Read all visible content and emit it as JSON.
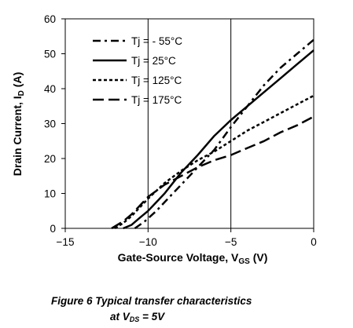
{
  "chart_data": {
    "type": "line",
    "xlabel": "Gate-Source Voltage, V",
    "xlabel_sub": "GS",
    "xlabel_unit": " (V)",
    "ylabel": "Drain Current, I",
    "ylabel_sub": "D",
    "ylabel_unit": " (A)",
    "xlim": [
      -15,
      0
    ],
    "ylim": [
      0,
      60
    ],
    "xticks": [
      -15,
      -10,
      -5,
      0
    ],
    "xtick_labels": [
      "−15",
      "−10",
      "−5",
      "0"
    ],
    "yticks": [
      0,
      10,
      20,
      30,
      40,
      50,
      60
    ],
    "ytick_labels": [
      "0",
      "10",
      "20",
      "30",
      "40",
      "50",
      "60"
    ],
    "grid": "vertical",
    "legend_position": "top-left",
    "series": [
      {
        "name": "Tj = - 55°C",
        "dash": "10,5,3,5",
        "x": [
          -10.8,
          -10.2,
          -9.5,
          -9.0,
          -8.5,
          -8.0,
          -7.5,
          -7.0,
          -6.0,
          -5.0,
          -4.0,
          -3.0,
          -2.0,
          -1.0,
          0.0
        ],
        "y": [
          0,
          2,
          5,
          7.5,
          10,
          12.5,
          15,
          17.5,
          22.5,
          29,
          35,
          41,
          46,
          50,
          54
        ]
      },
      {
        "name": "Tj = 25°C",
        "dash": "",
        "x": [
          -11.5,
          -11.0,
          -10.5,
          -10.0,
          -9.5,
          -9.0,
          -8.5,
          -8.0,
          -7.0,
          -6.0,
          -5.0,
          -4.0,
          -3.0,
          -2.0,
          -1.0,
          0.0
        ],
        "y": [
          0,
          1,
          3,
          5,
          7.5,
          10,
          13,
          16,
          21,
          26.5,
          31,
          35,
          39,
          43,
          47,
          51
        ]
      },
      {
        "name": "Tj = 125°C",
        "dash": "4,3",
        "x": [
          -12.0,
          -11.5,
          -11.0,
          -10.5,
          -10.0,
          -9.0,
          -8.0,
          -7.0,
          -6.0,
          -5.0,
          -4.0,
          -3.0,
          -2.0,
          -1.0,
          0.0
        ],
        "y": [
          0,
          1.5,
          3.5,
          6,
          8.5,
          13,
          16.5,
          19.5,
          22,
          25,
          28,
          30.5,
          33,
          35.5,
          38
        ]
      },
      {
        "name": "Tj = 175°C",
        "dash": "14,6",
        "x": [
          -12.2,
          -11.5,
          -11.0,
          -10.5,
          -10.0,
          -9.0,
          -8.0,
          -7.0,
          -6.0,
          -5.0,
          -4.0,
          -3.0,
          -2.0,
          -1.0,
          0.0
        ],
        "y": [
          0,
          2,
          4,
          6.5,
          9,
          12.5,
          15,
          17.5,
          19.5,
          21,
          23,
          25,
          27.5,
          29.5,
          32
        ]
      }
    ]
  },
  "caption": {
    "line1": "Figure 6 Typical transfer characteristics",
    "line2_prefix": "at V",
    "line2_sub": "DS",
    "line2_suffix": " = 5V"
  }
}
